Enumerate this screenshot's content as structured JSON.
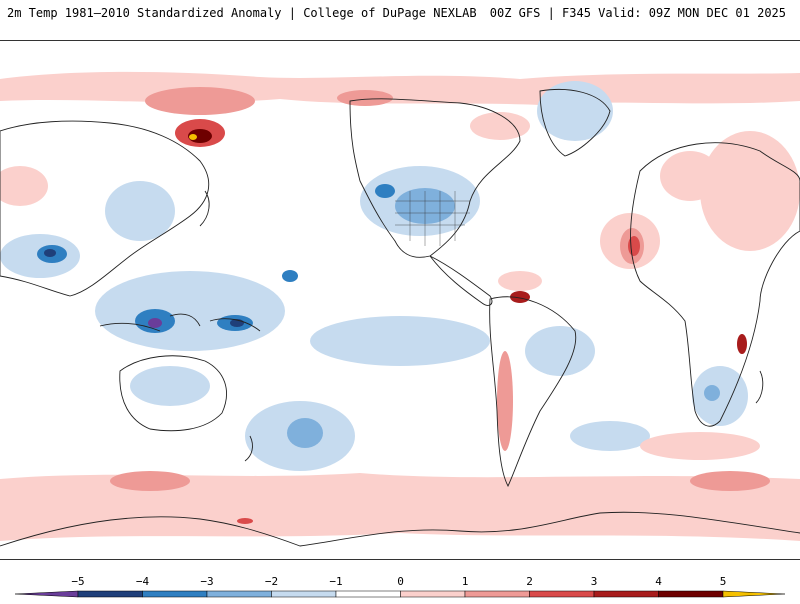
{
  "header": {
    "title_left": "2m Temp 1981–2010 Standardized Anomaly | College of DuPage NEXLAB",
    "title_right": "00Z GFS | F345 Valid: 09Z MON DEC 01 2025"
  },
  "colorbar": {
    "ticks": [
      "−5",
      "−4",
      "−3",
      "−2",
      "−1",
      "0",
      "1",
      "2",
      "3",
      "4",
      "5"
    ],
    "colors": [
      "#6a3d9a",
      "#1f3f7a",
      "#2f7fc1",
      "#7fb0dc",
      "#c6dbef",
      "#ffffff",
      "#fbd0cc",
      "#ee9a96",
      "#d94a4a",
      "#a81c1c",
      "#6e0000",
      "#f5c000"
    ]
  },
  "map": {
    "projection": "global equirectangular",
    "anomaly_features": [
      {
        "region": "Eastern Siberia",
        "sign": "warm",
        "magnitude": 5
      },
      {
        "region": "Western Canada / US Rockies",
        "sign": "cold",
        "magnitude": 3
      },
      {
        "region": "Central United States",
        "sign": "cold",
        "magnitude": 2
      },
      {
        "region": "Southeast Asia / Bay of Bengal",
        "sign": "cold",
        "magnitude": 4
      },
      {
        "region": "Indonesia / New Guinea",
        "sign": "cold",
        "magnitude": 4
      },
      {
        "region": "Northwest Africa",
        "sign": "warm",
        "magnitude": 4
      },
      {
        "region": "Venezuela",
        "sign": "warm",
        "magnitude": 4
      },
      {
        "region": "Southern Ocean ring",
        "sign": "warm",
        "magnitude": 1
      },
      {
        "region": "Southern Africa",
        "sign": "cold",
        "magnitude": 2
      },
      {
        "region": "South Pacific",
        "sign": "cold",
        "magnitude": 3
      }
    ]
  }
}
